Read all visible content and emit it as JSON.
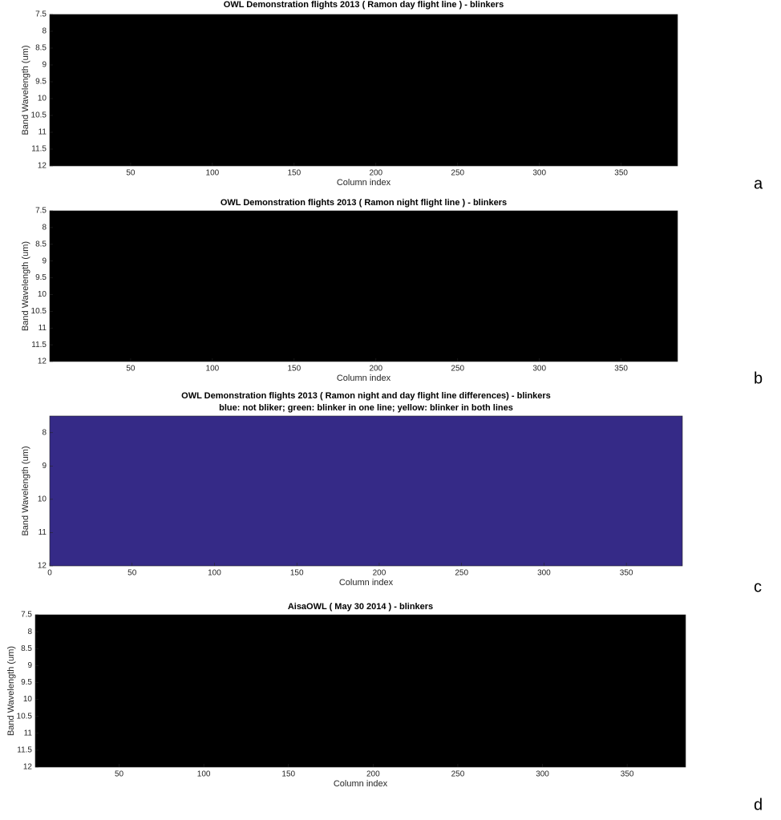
{
  "chart_data": [
    {
      "type": "image",
      "title": "OWL Demonstration flights 2013 ( Ramon day flight line ) - blinkers",
      "xlabel": "Column index",
      "ylabel": "Band Wavelength (um)",
      "panel_label": "a",
      "background": "#000000",
      "xlim": [
        0.5,
        384.5
      ],
      "ylim": [
        7.5,
        12
      ],
      "y_reversed": true,
      "xticks": [
        50,
        100,
        150,
        200,
        250,
        300,
        350
      ],
      "yticks": [
        7.5,
        8,
        8.5,
        9,
        9.5,
        10,
        10.5,
        11,
        11.5,
        12
      ]
    },
    {
      "type": "image",
      "title": "OWL Demonstration flights 2013 ( Ramon night flight line ) - blinkers",
      "xlabel": "Column index",
      "ylabel": "Band Wavelength (um)",
      "panel_label": "b",
      "background": "#000000",
      "xlim": [
        0.5,
        384.5
      ],
      "ylim": [
        7.5,
        12
      ],
      "y_reversed": true,
      "xticks": [
        50,
        100,
        150,
        200,
        250,
        300,
        350
      ],
      "yticks": [
        7.5,
        8,
        8.5,
        9,
        9.5,
        10,
        10.5,
        11,
        11.5,
        12
      ]
    },
    {
      "type": "image",
      "title": "OWL Demonstration flights 2013 ( Ramon night and day flight line differences) - blinkers",
      "subtitle": "blue: not bliker; green: blinker in one line; yellow: blinker in both lines",
      "xlabel": "Column index",
      "ylabel": "Band Wavelength (um)",
      "panel_label": "c",
      "background": "#352a87",
      "xlim": [
        0,
        384
      ],
      "ylim": [
        7.5,
        12
      ],
      "y_reversed": true,
      "xticks": [
        0,
        50,
        100,
        150,
        200,
        250,
        300,
        350
      ],
      "yticks": [
        8,
        9,
        10,
        11,
        12
      ]
    },
    {
      "type": "image",
      "title": "AisaOWL ( May 30 2014 ) - blinkers",
      "xlabel": "Column index",
      "ylabel": "Band Wavelength (um)",
      "panel_label": "d",
      "background": "#000000",
      "xlim": [
        0.5,
        384.5
      ],
      "ylim": [
        7.5,
        12
      ],
      "y_reversed": true,
      "xticks": [
        50,
        100,
        150,
        200,
        250,
        300,
        350
      ],
      "yticks": [
        7.5,
        8,
        8.5,
        9,
        9.5,
        10,
        10.5,
        11,
        11.5,
        12
      ]
    }
  ]
}
